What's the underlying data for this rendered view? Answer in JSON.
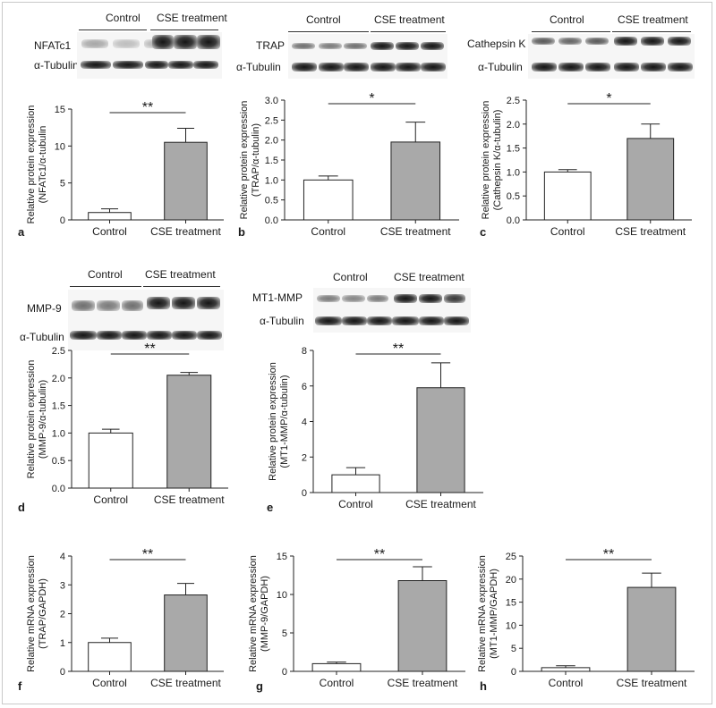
{
  "blots": [
    {
      "id": "a",
      "groups": [
        "Control",
        "CSE treatment"
      ],
      "rows": [
        "NFATc1",
        "α-Tubulin"
      ]
    },
    {
      "id": "b",
      "groups": [
        "Control",
        "CSE treatment"
      ],
      "rows": [
        "TRAP",
        "α-Tubulin"
      ]
    },
    {
      "id": "c",
      "groups": [
        "Control",
        "CSE treatment"
      ],
      "rows": [
        "Cathepsin K",
        "α-Tubulin"
      ]
    },
    {
      "id": "d",
      "groups": [
        "Control",
        "CSE treatment"
      ],
      "rows": [
        "MMP-9",
        "α-Tubulin"
      ]
    },
    {
      "id": "e",
      "groups": [
        "Control",
        "CSE treatment"
      ],
      "rows": [
        "MT1-MMP",
        "α-Tubulin"
      ]
    }
  ],
  "chart_data": [
    {
      "panel": "a",
      "type": "bar",
      "categories": [
        "Control",
        "CSE treatment"
      ],
      "values": [
        1.0,
        10.5
      ],
      "errors": [
        0.5,
        1.9
      ],
      "ylabel": [
        "Relative protein expression",
        "(NFATc1/α-tubulin"
      ],
      "ylim": [
        0,
        15
      ],
      "yticks": [
        0,
        5,
        10,
        15
      ],
      "significance": "**",
      "colors": [
        "#ffffff",
        "#a9a9a9"
      ]
    },
    {
      "panel": "b",
      "type": "bar",
      "categories": [
        "Control",
        "CSE treatment"
      ],
      "values": [
        1.0,
        1.95
      ],
      "errors": [
        0.1,
        0.5
      ],
      "ylabel": [
        "Relative protein expression",
        "(TRAP/α-tubulin)"
      ],
      "ylim": [
        0,
        3.0
      ],
      "yticks": [
        0,
        0.5,
        1.0,
        1.5,
        2.0,
        2.5,
        3.0
      ],
      "significance": "*",
      "colors": [
        "#ffffff",
        "#a9a9a9"
      ]
    },
    {
      "panel": "c",
      "type": "bar",
      "categories": [
        "Control",
        "CSE treatment"
      ],
      "values": [
        1.0,
        1.7
      ],
      "errors": [
        0.05,
        0.3
      ],
      "ylabel": [
        "Relative protein expression",
        "(Cathepsin K/α-tubulin)"
      ],
      "ylim": [
        0,
        2.5
      ],
      "yticks": [
        0,
        0.5,
        1.0,
        1.5,
        2.0,
        2.5
      ],
      "significance": "*",
      "colors": [
        "#ffffff",
        "#a9a9a9"
      ]
    },
    {
      "panel": "d",
      "type": "bar",
      "categories": [
        "Control",
        "CSE treatment"
      ],
      "values": [
        1.0,
        2.05
      ],
      "errors": [
        0.07,
        0.05
      ],
      "ylabel": [
        "Relative protein expression",
        "(MMP-9/α-tubulin)"
      ],
      "ylim": [
        0,
        2.5
      ],
      "yticks": [
        0,
        0.5,
        1.0,
        1.5,
        2.0,
        2.5
      ],
      "significance": "**",
      "colors": [
        "#ffffff",
        "#a9a9a9"
      ]
    },
    {
      "panel": "e",
      "type": "bar",
      "categories": [
        "Control",
        "CSE treatment"
      ],
      "values": [
        1.0,
        5.9
      ],
      "errors": [
        0.4,
        1.4
      ],
      "ylabel": [
        "Relative protein expression",
        "(MT1-MMP/α-tubulin)"
      ],
      "ylim": [
        0,
        8
      ],
      "yticks": [
        0,
        2,
        4,
        6,
        8
      ],
      "significance": "**",
      "colors": [
        "#ffffff",
        "#a9a9a9"
      ]
    },
    {
      "panel": "f",
      "type": "bar",
      "categories": [
        "Control",
        "CSE treatment"
      ],
      "values": [
        1.0,
        2.65
      ],
      "errors": [
        0.15,
        0.4
      ],
      "ylabel": [
        "Relative mRNA expression",
        "(TRAP/GAPDH)"
      ],
      "ylim": [
        0,
        4
      ],
      "yticks": [
        0,
        1,
        2,
        3,
        4
      ],
      "significance": "**",
      "colors": [
        "#ffffff",
        "#a9a9a9"
      ]
    },
    {
      "panel": "g",
      "type": "bar",
      "categories": [
        "Control",
        "CSE treatment"
      ],
      "values": [
        1.0,
        11.8
      ],
      "errors": [
        0.2,
        1.8
      ],
      "ylabel": [
        "Relative mRNA expression",
        "(MMP-9/GAPDH)"
      ],
      "ylim": [
        0,
        15
      ],
      "yticks": [
        0,
        5,
        10,
        15
      ],
      "significance": "**",
      "colors": [
        "#ffffff",
        "#a9a9a9"
      ]
    },
    {
      "panel": "h",
      "type": "bar",
      "categories": [
        "Control",
        "CSE treatment"
      ],
      "values": [
        0.8,
        18.2
      ],
      "errors": [
        0.4,
        3.1
      ],
      "ylabel": [
        "Relative mRNA expression",
        "(MT1-MMP/GAPDH)"
      ],
      "ylim": [
        0,
        25
      ],
      "yticks": [
        0,
        5,
        10,
        15,
        20,
        25
      ],
      "significance": "**",
      "colors": [
        "#ffffff",
        "#a9a9a9"
      ]
    }
  ]
}
